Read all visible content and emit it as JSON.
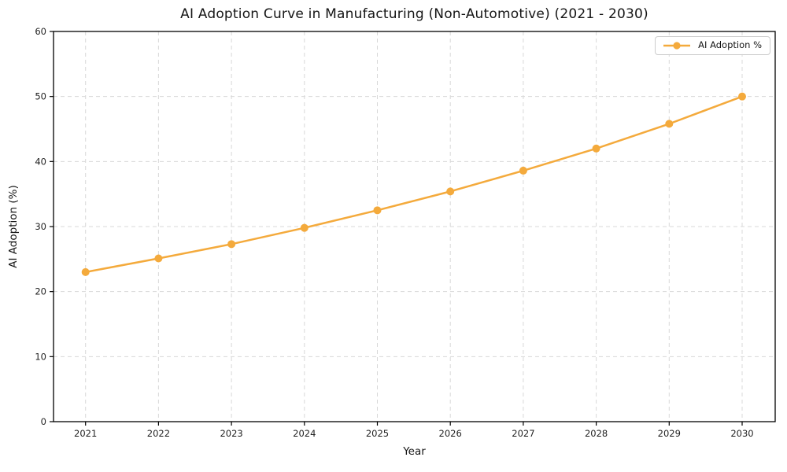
{
  "title": "AI Adoption Curve in Manufacturing (Non-Automotive) (2021 - 2030)",
  "colors": {
    "line": "#f4aa3c",
    "grid": "#d8d8d8",
    "spine": "#000000",
    "text": "#1f1f1f",
    "legend_border": "#cccccc"
  },
  "legend": {
    "label": "AI Adoption %",
    "position": "upper right"
  },
  "chart_data": {
    "type": "line",
    "title": "AI Adoption Curve in Manufacturing (Non-Automotive) (2021 - 2030)",
    "xlabel": "Year",
    "ylabel": "AI Adoption (%)",
    "categories": [
      "2021",
      "2022",
      "2023",
      "2024",
      "2025",
      "2026",
      "2027",
      "2028",
      "2029",
      "2030"
    ],
    "series": [
      {
        "name": "AI Adoption %",
        "values": [
          23.0,
          25.1,
          27.3,
          29.8,
          32.5,
          35.4,
          38.6,
          42.0,
          45.8,
          50.0
        ]
      }
    ],
    "ylim": [
      0,
      60
    ],
    "yticks": [
      0,
      10,
      20,
      30,
      40,
      50,
      60
    ],
    "grid": true,
    "grid_style": "dashed",
    "marker": "circle",
    "legend_position": "upper right"
  }
}
